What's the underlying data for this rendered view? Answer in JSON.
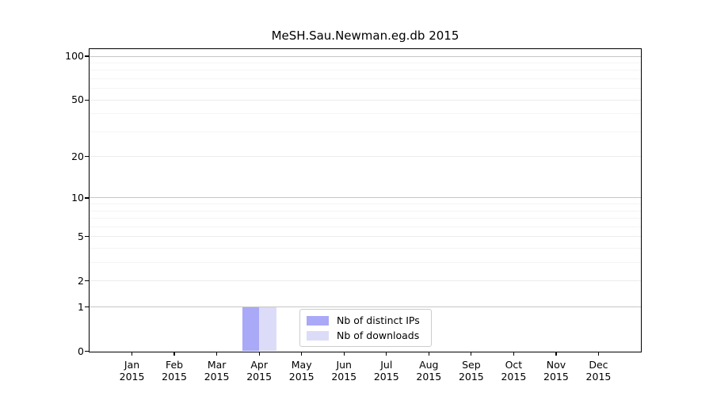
{
  "figure": {
    "title": "MeSH.Sau.Newman.eg.db 2015"
  },
  "legend": {
    "items": [
      {
        "label": "Nb of distinct IPs",
        "color": "#a9a9f7"
      },
      {
        "label": "Nb of downloads",
        "color": "#dcdcf9"
      }
    ]
  },
  "chart_data": {
    "type": "bar",
    "title": "MeSH.Sau.Newman.eg.db 2015",
    "categories": [
      "Jan 2015",
      "Feb 2015",
      "Mar 2015",
      "Apr 2015",
      "May 2015",
      "Jun 2015",
      "Jul 2015",
      "Aug 2015",
      "Sep 2015",
      "Oct 2015",
      "Nov 2015",
      "Dec 2015"
    ],
    "series": [
      {
        "name": "Nb of distinct IPs",
        "color": "#a9a9f7",
        "values": [
          0,
          0,
          0,
          1,
          0,
          0,
          0,
          0,
          0,
          0,
          0,
          0
        ]
      },
      {
        "name": "Nb of downloads",
        "color": "#dcdcf9",
        "values": [
          0,
          0,
          0,
          1,
          0,
          0,
          0,
          0,
          0,
          0,
          0,
          0
        ]
      }
    ],
    "xlabel": "",
    "ylabel": "",
    "y_scale": "log1p",
    "y_ticks": [
      0,
      1,
      2,
      5,
      10,
      20,
      50,
      100
    ],
    "ylim": [
      0,
      112
    ],
    "grid": "horizontal",
    "grid_levels": {
      "major": [
        1,
        10,
        100
      ],
      "mid": [
        2,
        5,
        20,
        50
      ],
      "minor": [
        3,
        4,
        6,
        7,
        8,
        9,
        30,
        40,
        60,
        70,
        80,
        90
      ]
    },
    "legend_position": "bottom-center"
  },
  "colors": {
    "axis": "#000000",
    "grid_major": "#c6c6c6",
    "grid_mid": "#ececec",
    "grid_minor": "#f4f4f4",
    "background": "#ffffff",
    "legend_border": "#cccccc"
  }
}
